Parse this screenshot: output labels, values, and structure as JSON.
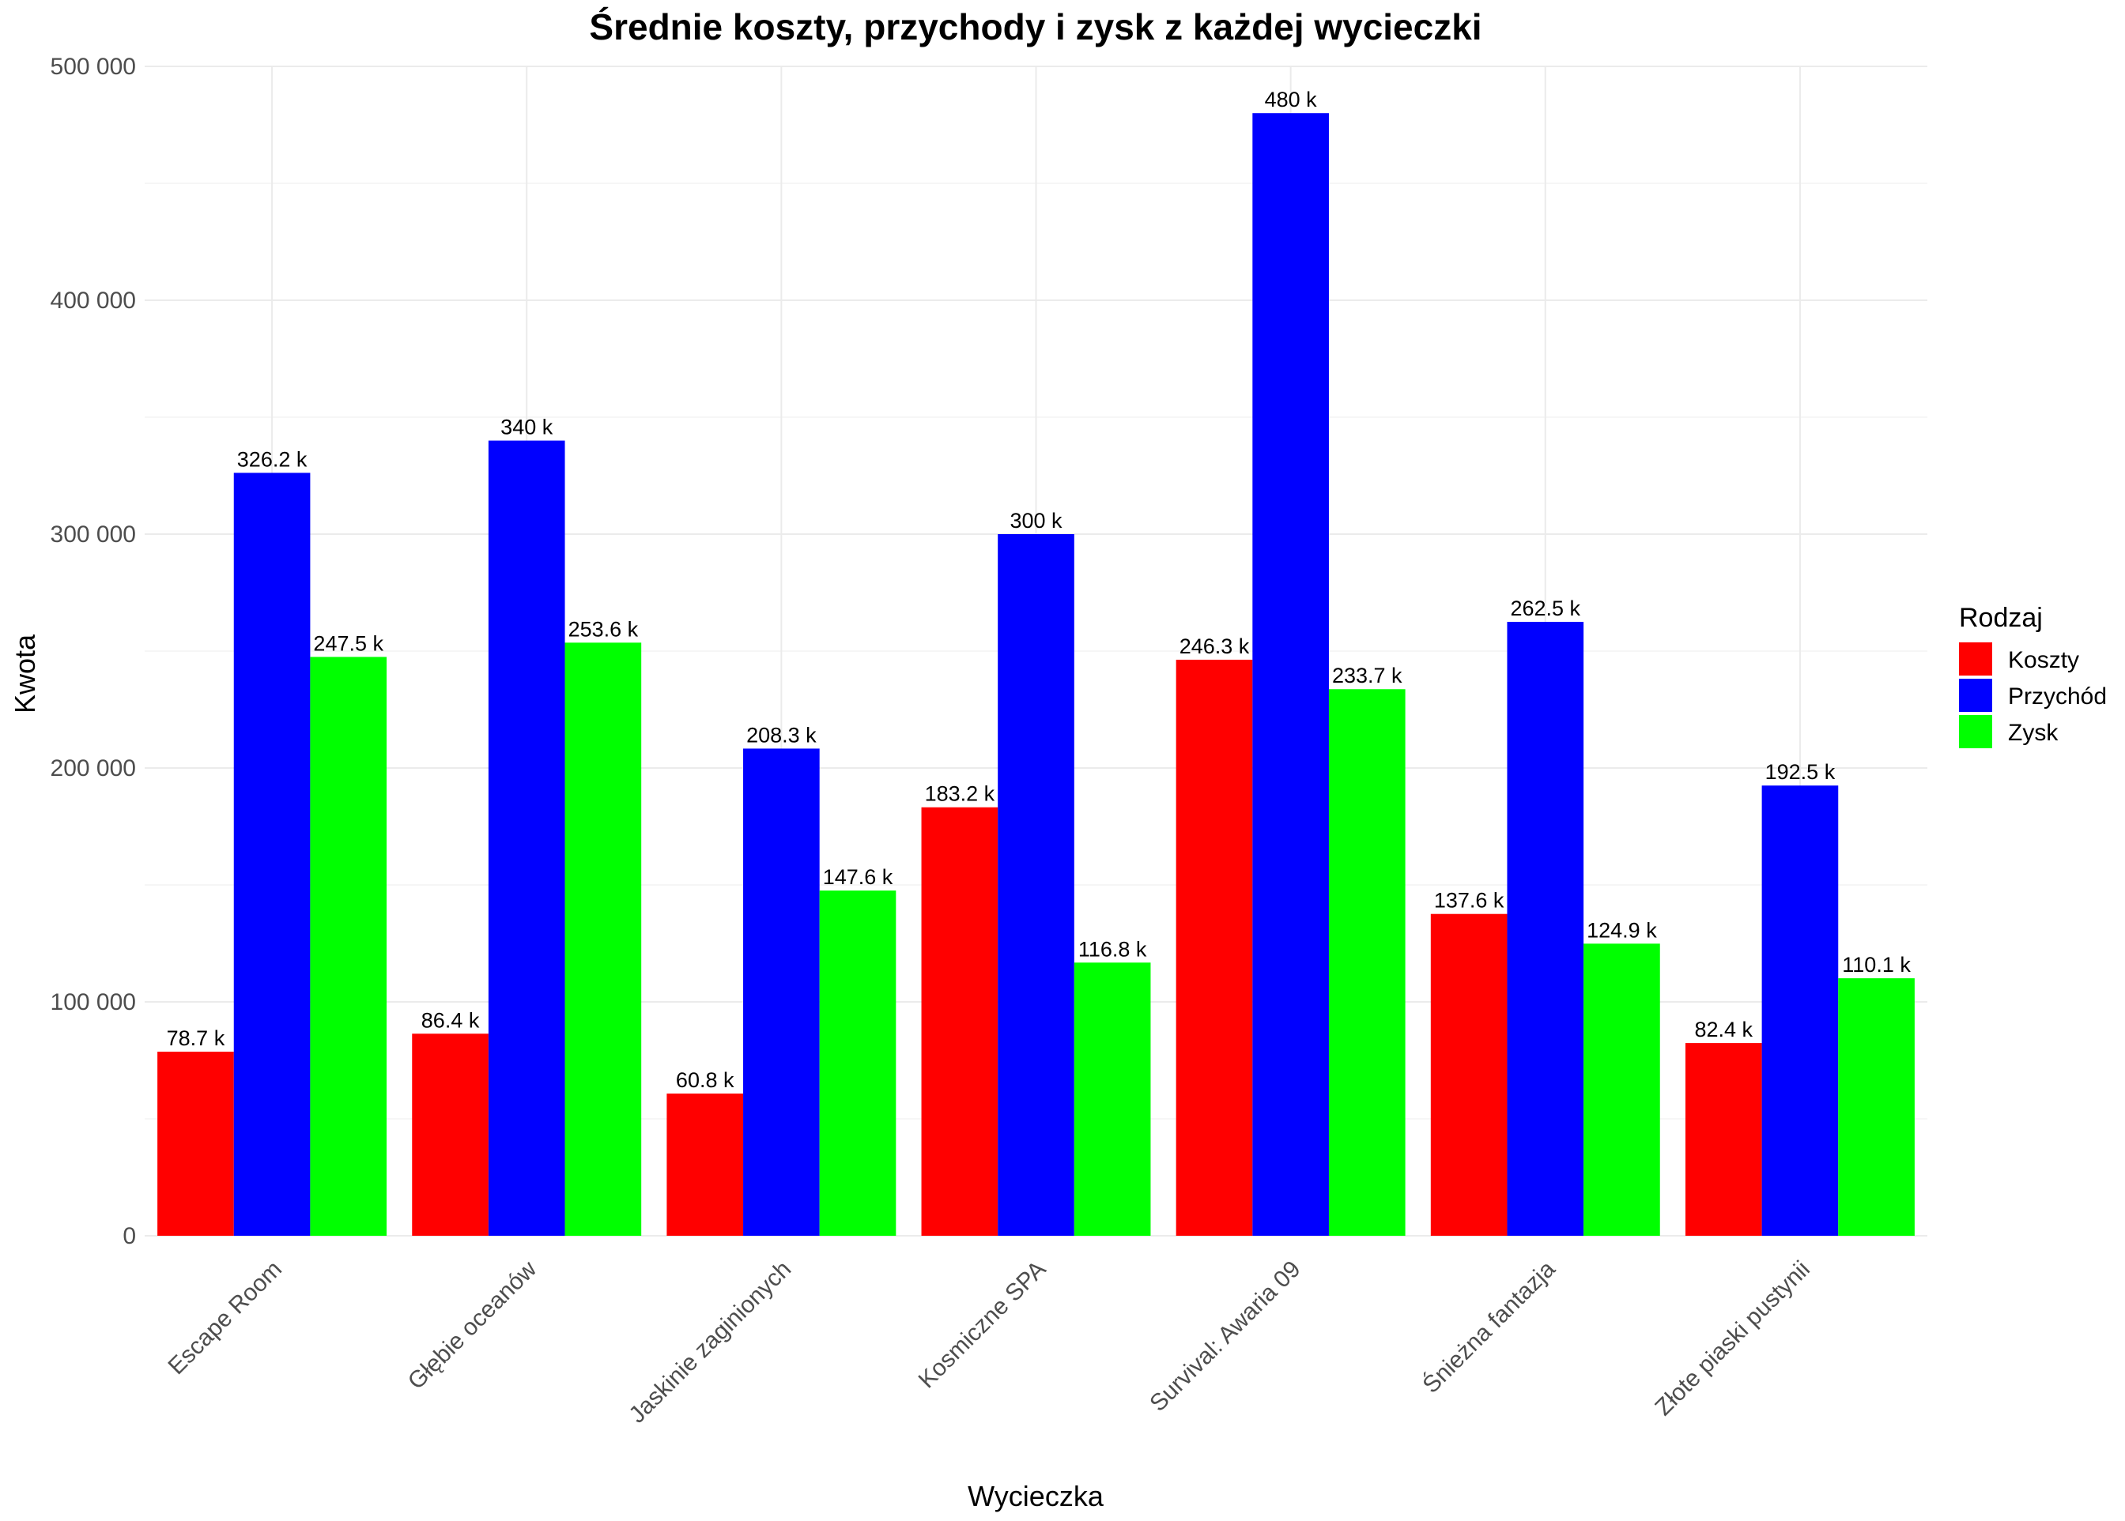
{
  "chart_data": {
    "type": "bar",
    "title": "Średnie koszty, przychody i zysk z każdej wycieczki",
    "xlabel": "Wycieczka",
    "ylabel": "Kwota",
    "ylim": [
      0,
      500000
    ],
    "y_ticks": [
      0,
      100000,
      200000,
      300000,
      400000,
      500000
    ],
    "y_tick_labels": [
      "0",
      "100 000",
      "200 000",
      "300 000",
      "400 000",
      "500 000"
    ],
    "grid": true,
    "legend_position": "right",
    "legend_title": "Rodzaj",
    "categories": [
      "Escape Room",
      "Głębie oceanów",
      "Jaskinie zaginionych",
      "Kosmiczne SPA",
      "Survival: Awaria 09",
      "Śnieżna fantazja",
      "Złote piaski pustynii"
    ],
    "series": [
      {
        "name": "Koszty",
        "color": "#ff0000",
        "values": [
          78700,
          86400,
          60800,
          183200,
          246300,
          137600,
          82400
        ],
        "labels": [
          "78.7 k",
          "86.4 k",
          "60.8 k",
          "183.2 k",
          "246.3 k",
          "137.6 k",
          "82.4 k"
        ]
      },
      {
        "name": "Przychód",
        "color": "#0000ff",
        "values": [
          326200,
          340000,
          208300,
          300000,
          480000,
          262500,
          192500
        ],
        "labels": [
          "326.2 k",
          "340 k",
          "208.3 k",
          "300 k",
          "480 k",
          "262.5 k",
          "192.5 k"
        ]
      },
      {
        "name": "Zysk",
        "color": "#00ff00",
        "values": [
          247500,
          253600,
          147600,
          116800,
          233700,
          124900,
          110100
        ],
        "labels": [
          "247.5 k",
          "253.6 k",
          "147.6 k",
          "116.8 k",
          "233.7 k",
          "124.9 k",
          "110.1 k"
        ]
      }
    ]
  }
}
